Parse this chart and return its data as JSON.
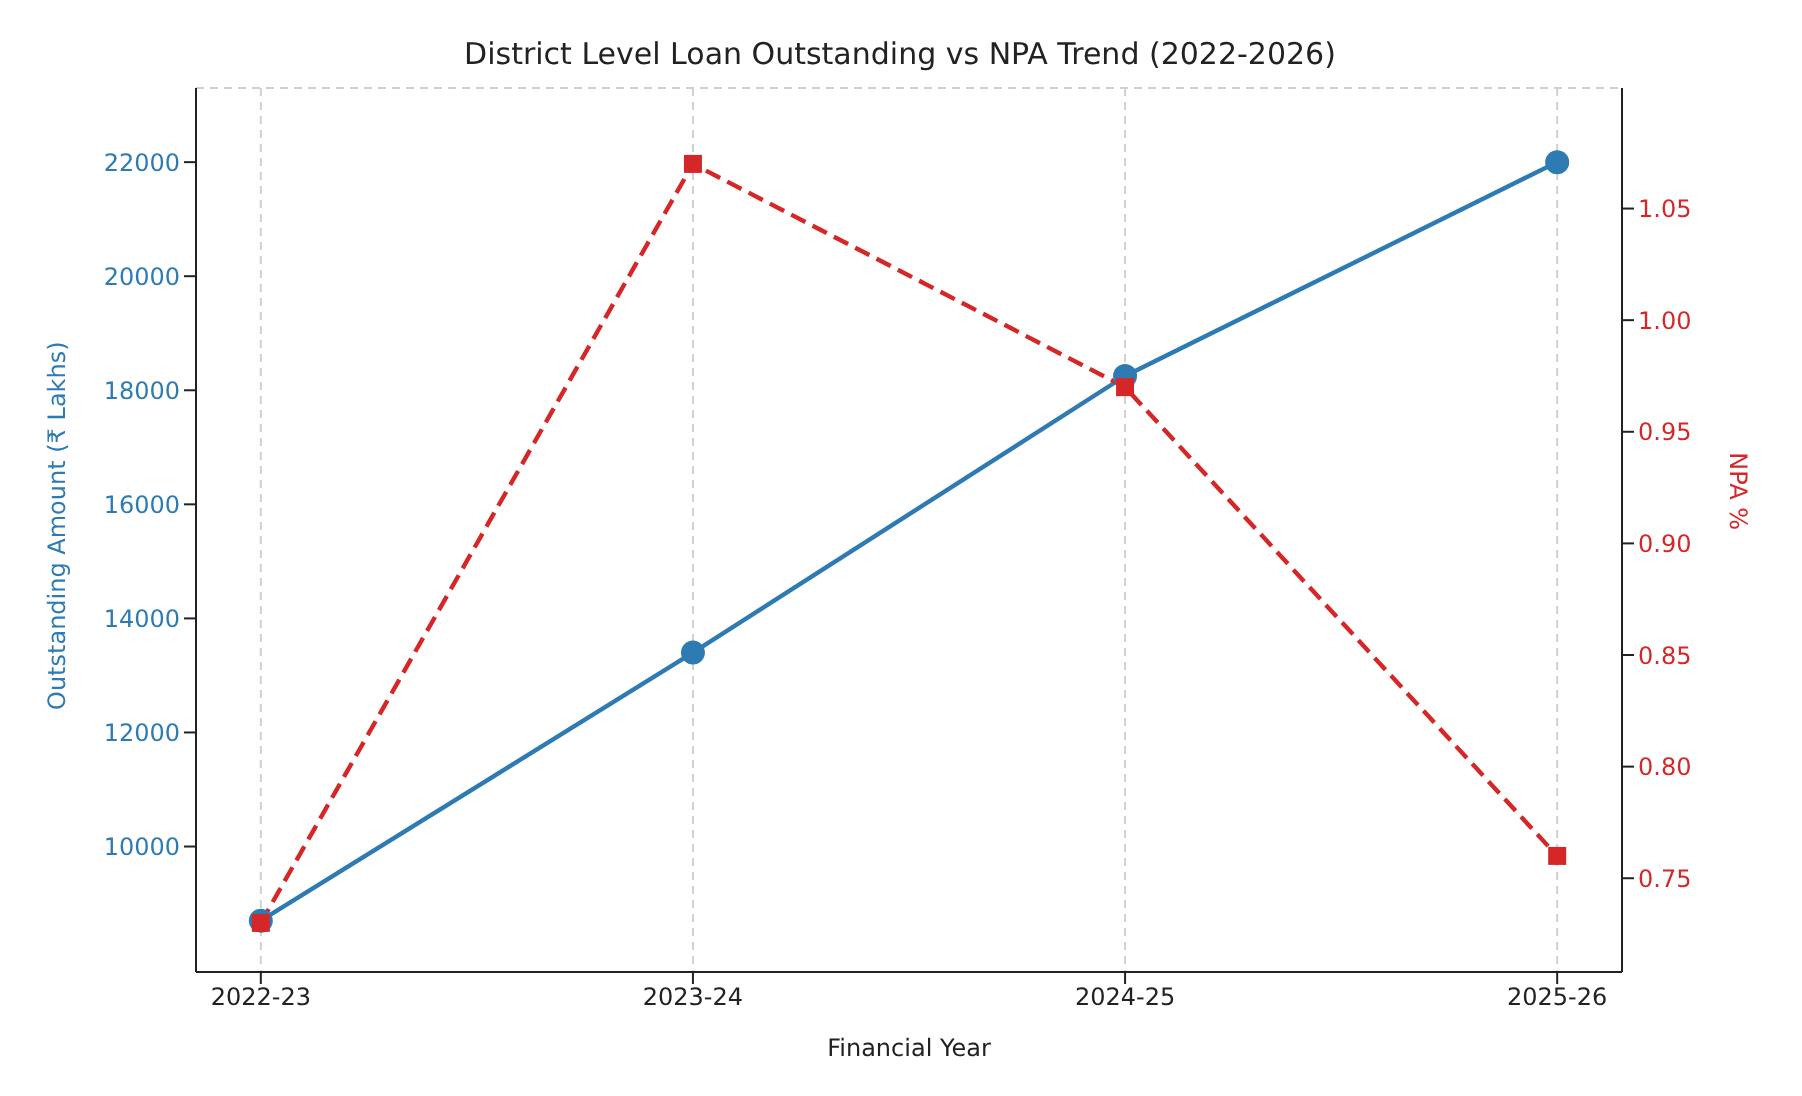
{
  "chart_data": {
    "type": "line",
    "title": "District Level Loan Outstanding vs NPA Trend (2022-2026)",
    "xlabel": "Financial Year",
    "ylabel": "Outstanding Amount (₹ Lakhs)",
    "y2label": "NPA %",
    "categories": [
      "2022-23",
      "2023-24",
      "2024-25",
      "2025-26"
    ],
    "series": [
      {
        "color": "#2e7bb4",
        "values": [
          8700,
          13400,
          18250,
          22000
        ],
        "marker": "circle",
        "line_style": "solid"
      },
      {
        "color": "#d62728",
        "values": [
          0.73,
          1.07,
          0.97,
          0.76
        ],
        "axis": "y2",
        "marker": "square",
        "line_style": "dashed"
      }
    ],
    "ylim": [
      7800,
      23300
    ],
    "yticks": [
      10000,
      12000,
      14000,
      16000,
      18000,
      20000,
      22000
    ],
    "y2lim": [
      0.708,
      1.104
    ],
    "y2ticks": [
      {
        "value": 0.75,
        "label": "0.75"
      },
      {
        "value": 0.8,
        "label": "0.80"
      },
      {
        "value": 0.85,
        "label": "0.85"
      },
      {
        "value": 0.9,
        "label": "0.90"
      },
      {
        "value": 0.95,
        "label": "0.95"
      },
      {
        "value": 1.0,
        "label": "1.00"
      },
      {
        "value": 1.05,
        "label": "1.05"
      }
    ],
    "grid": true,
    "legend": false
  }
}
